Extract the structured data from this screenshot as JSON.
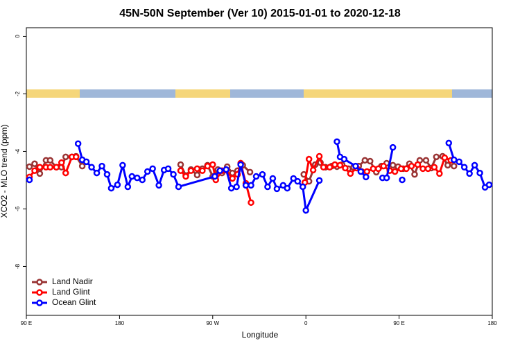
{
  "chart_data": {
    "type": "line",
    "title": "45N-50N September (Ver 10)   2015-01-01 to 2020-12-18",
    "xlabel": "Longitude",
    "ylabel": "XCO2 - MLO trend (ppm)",
    "xlim": [
      90,
      540
    ],
    "ylim": [
      -9.7,
      0.3
    ],
    "xticks": [
      {
        "value": 90,
        "label": "90 E"
      },
      180,
      {
        "value": 270,
        "label": "90 W"
      },
      {
        "value": 360,
        "label": "0"
      },
      {
        "value": 450,
        "label": "90 E"
      },
      {
        "value": 540,
        "label": "180"
      }
    ],
    "yticks": [
      0,
      -2,
      -4,
      -6,
      -8
    ],
    "legend": "bottom-left",
    "series": [
      {
        "name": "Land Nadir",
        "color": "#993333",
        "x": [
          93,
          98,
          103,
          109,
          113,
          119,
          124,
          128,
          134,
          138,
          144,
          190,
          239,
          244,
          249,
          255,
          260,
          265,
          270,
          275,
          279,
          284,
          289,
          294,
          299,
          306,
          330,
          358,
          363,
          369,
          374,
          379,
          385,
          390,
          395,
          401,
          406,
          411,
          417,
          422,
          428,
          433,
          438,
          444,
          449,
          454,
          460,
          465,
          470,
          476,
          481,
          486,
          492,
          497,
          503
        ],
        "values": [
          -4.53,
          -4.43,
          -4.77,
          -4.31,
          -4.31,
          -4.55,
          -4.55,
          -4.19,
          -4.19,
          -4.17,
          -4.51,
          null,
          -4.46,
          -4.84,
          -4.63,
          -4.82,
          -4.6,
          -4.48,
          -4.87,
          -4.63,
          -4.75,
          -4.53,
          -4.75,
          -4.67,
          -4.48,
          -4.72,
          null,
          -4.8,
          -5.04,
          -4.46,
          -4.39,
          -4.55,
          -4.51,
          -4.53,
          -4.46,
          -4.6,
          -4.55,
          -4.51,
          -4.31,
          -4.34,
          -4.72,
          -4.51,
          -4.41,
          -4.48,
          -4.53,
          -4.6,
          -4.43,
          -4.8,
          -4.31,
          -4.31,
          -4.58,
          -4.19,
          -4.17,
          -4.48,
          -4.51
        ]
      },
      {
        "name": "Land Glint",
        "color": "#ff0000",
        "x": [
          93,
          98,
          103,
          109,
          113,
          119,
          124,
          128,
          134,
          138,
          190,
          239,
          244,
          249,
          255,
          260,
          265,
          270,
          273,
          279,
          283,
          289,
          294,
          297,
          302,
          307,
          330,
          359,
          363,
          367,
          373,
          377,
          383,
          388,
          393,
          398,
          403,
          409,
          414,
          419,
          425,
          430,
          435,
          441,
          446,
          452,
          457,
          462,
          468,
          473,
          478,
          484,
          489,
          494,
          500
        ],
        "values": [
          -4.89,
          -4.67,
          -4.55,
          -4.55,
          -4.55,
          -4.55,
          -4.39,
          -4.75,
          -4.19,
          -4.19,
          null,
          -4.67,
          -4.87,
          -4.67,
          -4.6,
          -4.67,
          -4.51,
          -4.46,
          -4.99,
          -4.67,
          -4.65,
          -4.94,
          -4.8,
          -4.41,
          -5.11,
          -5.78,
          null,
          -5.08,
          -4.27,
          -4.65,
          -4.17,
          -4.55,
          -4.55,
          -4.46,
          -4.48,
          -4.58,
          -4.77,
          -4.58,
          -4.7,
          -4.7,
          -4.6,
          -4.6,
          -4.51,
          -4.67,
          -4.7,
          -4.6,
          -4.6,
          -4.51,
          -4.46,
          -4.6,
          -4.6,
          -4.55,
          -4.77,
          -4.22,
          -4.31
        ]
      },
      {
        "name": "Ocean Glint",
        "color": "#0000ff",
        "x": [
          93,
          120,
          140,
          144,
          148,
          153,
          158,
          163,
          168,
          172,
          178,
          183,
          188,
          192,
          197,
          202,
          207,
          212,
          218,
          223,
          227,
          232,
          237,
          272,
          277,
          283,
          288,
          293,
          297,
          302,
          307,
          312,
          318,
          323,
          328,
          332,
          338,
          342,
          348,
          352,
          357,
          360,
          373,
          380,
          390,
          393,
          397,
          408,
          413,
          418,
          425,
          434,
          438,
          444,
          448,
          453,
          470,
          498,
          503,
          508,
          513,
          518,
          523,
          528,
          533,
          537
        ],
        "values": [
          -4.99,
          null,
          -3.73,
          -4.29,
          -4.36,
          -4.55,
          -4.75,
          -4.51,
          -4.8,
          -5.28,
          -5.16,
          -4.48,
          -5.23,
          -4.87,
          -4.92,
          -4.99,
          -4.7,
          -4.6,
          -5.18,
          -4.65,
          -4.6,
          -4.8,
          -5.23,
          -4.87,
          -4.67,
          -4.63,
          -5.28,
          -5.23,
          -4.46,
          -5.18,
          -5.18,
          -4.87,
          -4.8,
          -5.23,
          -4.94,
          -5.3,
          -5.18,
          -5.28,
          -4.94,
          -5.04,
          -5.23,
          -6.05,
          -5.01,
          null,
          -3.66,
          -4.19,
          -4.27,
          -4.51,
          -4.7,
          -4.89,
          null,
          -4.92,
          -4.92,
          -3.86,
          null,
          -4.99,
          null,
          -3.71,
          -4.29,
          -4.36,
          -4.55,
          -4.77,
          -4.48,
          -4.75,
          -5.25,
          -5.16
        ]
      }
    ]
  }
}
